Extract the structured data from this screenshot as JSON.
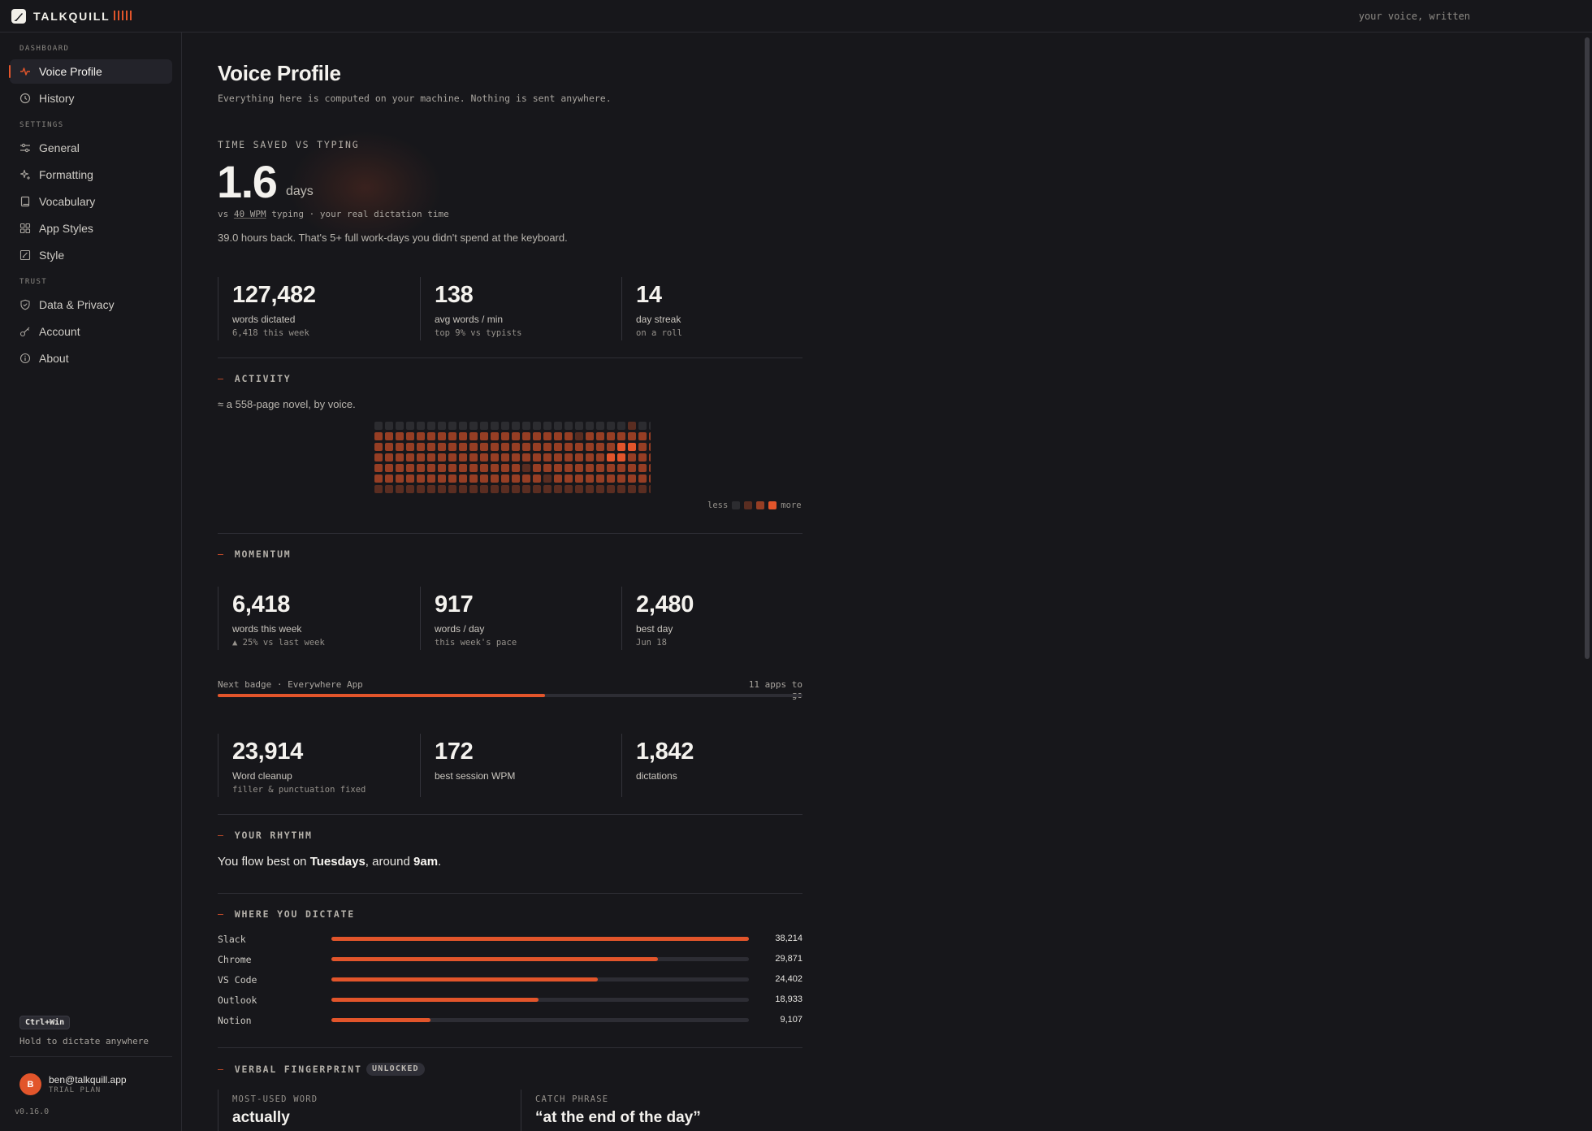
{
  "app": {
    "name": "TALKQUILL",
    "tagline": "your voice, written"
  },
  "sidebar": {
    "groups": [
      {
        "label": "DASHBOARD"
      },
      {
        "label": "SETTINGS"
      },
      {
        "label": "TRUST"
      }
    ],
    "items": [
      {
        "label": "Voice Profile",
        "icon": "pulse-icon",
        "active": true
      },
      {
        "label": "History",
        "icon": "clock-icon"
      },
      {
        "label": "General",
        "icon": "sliders-icon"
      },
      {
        "label": "Formatting",
        "icon": "sparkle-icon"
      },
      {
        "label": "Vocabulary",
        "icon": "book-icon"
      },
      {
        "label": "App Styles",
        "icon": "grid-icon"
      },
      {
        "label": "Style",
        "icon": "pen-square-icon"
      },
      {
        "label": "Data & Privacy",
        "icon": "shield-check-icon"
      },
      {
        "label": "Account",
        "icon": "key-icon"
      },
      {
        "label": "About",
        "icon": "info-icon"
      }
    ],
    "shortcut": {
      "key": "Ctrl+Win",
      "hint": "Hold to dictate anywhere"
    },
    "user": {
      "initial": "B",
      "email": "ben@talkquill.app",
      "plan": "TRIAL PLAN"
    },
    "version": "v0.16.0"
  },
  "page": {
    "title": "Voice Profile",
    "subtitle": "Everything here is computed on your machine. Nothing is sent anywhere."
  },
  "time_saved": {
    "caption": "TIME SAVED VS TYPING",
    "value": "1.6",
    "unit": "days",
    "vs_prefix": "vs",
    "vs_wpm": "40 WPM",
    "vs_suffix": "typing · your real dictation time",
    "hours_line": "39.0 hours back. That's 5+ full work-days you didn't spend at the keyboard."
  },
  "summary_stats": [
    {
      "value": "127,482",
      "label": "words dictated",
      "sub": "6,418 this week"
    },
    {
      "value": "138",
      "label": "avg words / min",
      "sub": "top 9% vs typists"
    },
    {
      "value": "14",
      "label": "day streak",
      "sub": "on a roll"
    }
  ],
  "activity": {
    "heading": "ACTIVITY",
    "novel_line": "≈ a 558-page novel, by voice.",
    "legend_less": "less",
    "legend_more": "more",
    "levels": [
      "#2c2c30",
      "#5a2d21",
      "#963e24",
      "#e2552b"
    ],
    "grid": [
      "00000000000000000000000010000000000000000000000000000",
      "22222222222222222221222222222222222232222222222222222",
      "22222222222222222222222332222233233332333322223322222",
      "22222222222222222222223322223322323322222222222222222",
      "22222222222222122222222222222232233322232322222222222",
      "22222222222222221222222222222212222222222212222222222",
      "11111111111111111111111111111111111111111111111111111"
    ]
  },
  "momentum": {
    "heading": "MOMENTUM",
    "stats": [
      {
        "value": "6,418",
        "label": "words this week",
        "sub": "▲ 25% vs last week"
      },
      {
        "value": "917",
        "label": "words / day",
        "sub": "this week's pace"
      },
      {
        "value": "2,480",
        "label": "best day",
        "sub": "Jun 18"
      }
    ],
    "badge": {
      "label": "Next badge · Everywhere App",
      "remaining": "11 apps to go",
      "progress": 0.56
    },
    "stats2": [
      {
        "value": "23,914",
        "label": "Word cleanup",
        "sub": "filler & punctuation fixed"
      },
      {
        "value": "172",
        "label": "best session WPM",
        "sub": ""
      },
      {
        "value": "1,842",
        "label": "dictations",
        "sub": ""
      }
    ]
  },
  "rhythm": {
    "heading": "YOUR RHYTHM",
    "prefix": "You flow best on ",
    "day": "Tuesdays",
    "middle": ", around ",
    "time": "9am",
    "suffix": "."
  },
  "where": {
    "heading": "WHERE YOU DICTATE",
    "apps": [
      {
        "name": "Slack",
        "value": "38,214",
        "count": 38214
      },
      {
        "name": "Chrome",
        "value": "29,871",
        "count": 29871
      },
      {
        "name": "VS Code",
        "value": "24,402",
        "count": 24402
      },
      {
        "name": "Outlook",
        "value": "18,933",
        "count": 18933
      },
      {
        "name": "Notion",
        "value": "9,107",
        "count": 9107
      }
    ]
  },
  "fingerprint": {
    "heading": "VERBAL FINGERPRINT",
    "badge": "UNLOCKED",
    "most_used_caption": "MOST-USED WORD",
    "most_used": "actually",
    "catch_caption": "CATCH PHRASE",
    "catch_phrase": "“at the end of the day”"
  },
  "colors": {
    "accent": "#e2552b",
    "background": "#17171b"
  }
}
